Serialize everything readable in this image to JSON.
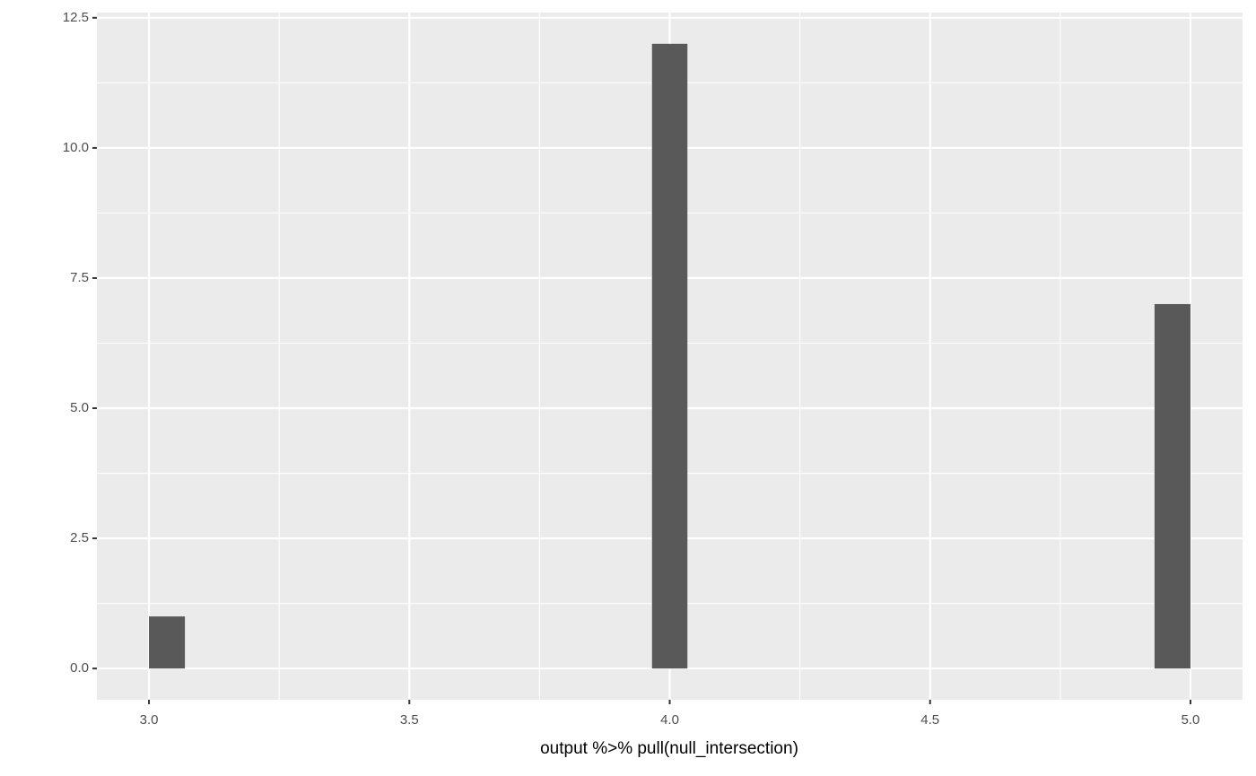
{
  "chart_data": {
    "type": "histogram",
    "x_label": "output %>% pull(null_intersection)",
    "bins": [
      3,
      3.069,
      3.138,
      3.207,
      3.276,
      3.345,
      3.414,
      3.483,
      3.552,
      3.621,
      3.69,
      3.759,
      3.828,
      3.897,
      3.966,
      4.034,
      4.103,
      4.172,
      4.241,
      4.31,
      4.379,
      4.448,
      4.517,
      4.586,
      4.655,
      4.724,
      4.793,
      4.862,
      4.931,
      5
    ],
    "values": [
      1,
      0,
      0,
      0,
      0,
      0,
      0,
      0,
      0,
      0,
      0,
      0,
      0,
      0,
      12,
      0,
      0,
      0,
      0,
      0,
      0,
      0,
      0,
      0,
      0,
      0,
      0,
      0,
      7
    ],
    "color": "#595959",
    "panel_color": "#ebebeb",
    "grid": true,
    "xlim": [
      2.9,
      5.1
    ],
    "ylim": [
      -0.6,
      12.6
    ],
    "xticks": [
      {
        "value": 3,
        "label": "3.0"
      },
      3.5,
      {
        "value": 4,
        "label": "4.0"
      },
      4.5,
      {
        "value": 5,
        "label": "5.0"
      }
    ],
    "yticks": [
      {
        "value": 0,
        "label": "0.0"
      },
      2.5,
      {
        "value": 5,
        "label": "5.0"
      },
      7.5,
      {
        "value": 10,
        "label": "10.0"
      },
      12.5
    ],
    "x_minor_breaks": [
      3.25,
      3.75,
      4.25,
      4.75
    ],
    "y_minor_breaks": [
      1.25,
      3.75,
      6.25,
      8.75,
      11.25
    ]
  }
}
